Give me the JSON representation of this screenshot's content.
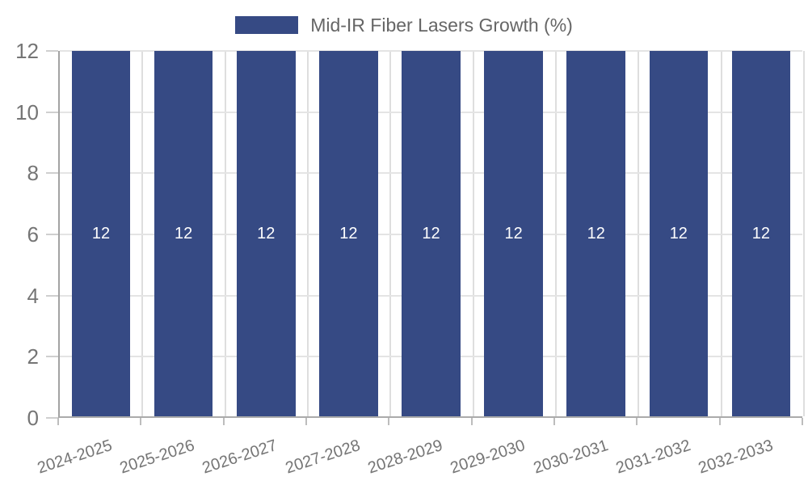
{
  "chart_data": {
    "type": "bar",
    "title": "Mid-IR Fiber Lasers Growth (%)",
    "categories": [
      "2024-2025",
      "2025-2026",
      "2026-2027",
      "2027-2028",
      "2028-2029",
      "2029-2030",
      "2030-2031",
      "2031-2032",
      "2032-2033"
    ],
    "series": [
      {
        "name": "Mid-IR Fiber Lasers Growth (%)",
        "values": [
          12,
          12,
          12,
          12,
          12,
          12,
          12,
          12,
          12
        ],
        "bar_labels": [
          "12",
          "12",
          "12",
          "12",
          "12",
          "12",
          "12",
          "12",
          "12"
        ]
      }
    ],
    "xlabel": "",
    "ylabel": "",
    "ylim": [
      0,
      12
    ],
    "yticks": [
      0,
      2,
      4,
      6,
      8,
      10,
      12
    ],
    "grid": true,
    "legend_position": "top",
    "colors": {
      "bar": "#364a84",
      "bar_label": "#ffffff",
      "gridline": "#e4e4e4",
      "axis_line": "#a3a3a3",
      "tick_text": "#757575",
      "legend_text": "#666666"
    }
  }
}
